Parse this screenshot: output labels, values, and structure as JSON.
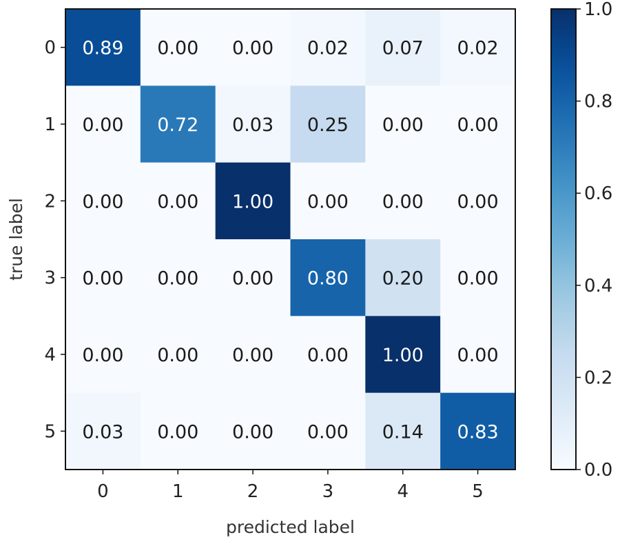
{
  "chart_data": {
    "type": "heatmap",
    "title": "",
    "xlabel": "predicted label",
    "ylabel": "true label",
    "x_categories": [
      "0",
      "1",
      "2",
      "3",
      "4",
      "5"
    ],
    "y_categories": [
      "0",
      "1",
      "2",
      "3",
      "4",
      "5"
    ],
    "values": [
      [
        0.89,
        0.0,
        0.0,
        0.02,
        0.07,
        0.02
      ],
      [
        0.0,
        0.72,
        0.03,
        0.25,
        0.0,
        0.0
      ],
      [
        0.0,
        0.0,
        1.0,
        0.0,
        0.0,
        0.0
      ],
      [
        0.0,
        0.0,
        0.0,
        0.8,
        0.2,
        0.0
      ],
      [
        0.0,
        0.0,
        0.0,
        0.0,
        1.0,
        0.0
      ],
      [
        0.03,
        0.0,
        0.0,
        0.0,
        0.14,
        0.83
      ]
    ],
    "value_labels": [
      [
        "0.89",
        "0.00",
        "0.00",
        "0.02",
        "0.07",
        "0.02"
      ],
      [
        "0.00",
        "0.72",
        "0.03",
        "0.25",
        "0.00",
        "0.00"
      ],
      [
        "0.00",
        "0.00",
        "1.00",
        "0.00",
        "0.00",
        "0.00"
      ],
      [
        "0.00",
        "0.00",
        "0.00",
        "0.80",
        "0.20",
        "0.00"
      ],
      [
        "0.00",
        "0.00",
        "0.00",
        "0.00",
        "1.00",
        "0.00"
      ],
      [
        "0.03",
        "0.00",
        "0.00",
        "0.00",
        "0.14",
        "0.83"
      ]
    ],
    "colormap": "Blues",
    "vmin": 0.0,
    "vmax": 1.0,
    "colorbar": {
      "ticks": [
        0.0,
        0.2,
        0.4,
        0.6,
        0.8,
        1.0
      ],
      "tick_labels": [
        "0.0",
        "0.2",
        "0.4",
        "0.6",
        "0.8",
        "1.0"
      ]
    },
    "grid": false,
    "legend": "none"
  },
  "colors": {
    "low": "#f7fbff",
    "high": "#08306b",
    "dark_text": "#1a1a1a",
    "light_text": "#ffffff",
    "frame": "#111111"
  }
}
